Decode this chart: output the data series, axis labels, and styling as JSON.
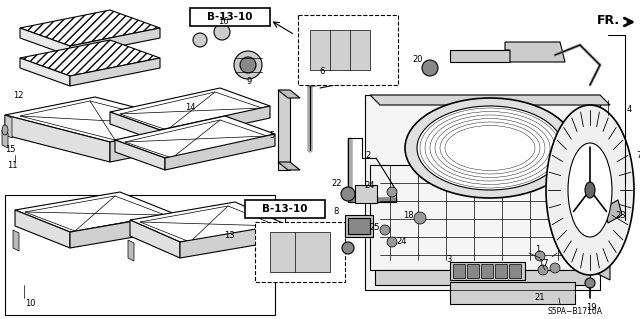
{
  "background_color": "#ffffff",
  "diagram_code": "S5PA−B1710A",
  "fig_width": 6.4,
  "fig_height": 3.19,
  "dpi": 100,
  "border_color": "#000000",
  "fr_label": "FR.",
  "b1310": "B-13-10",
  "label_fs": 6.0,
  "bold_fs": 7.5
}
